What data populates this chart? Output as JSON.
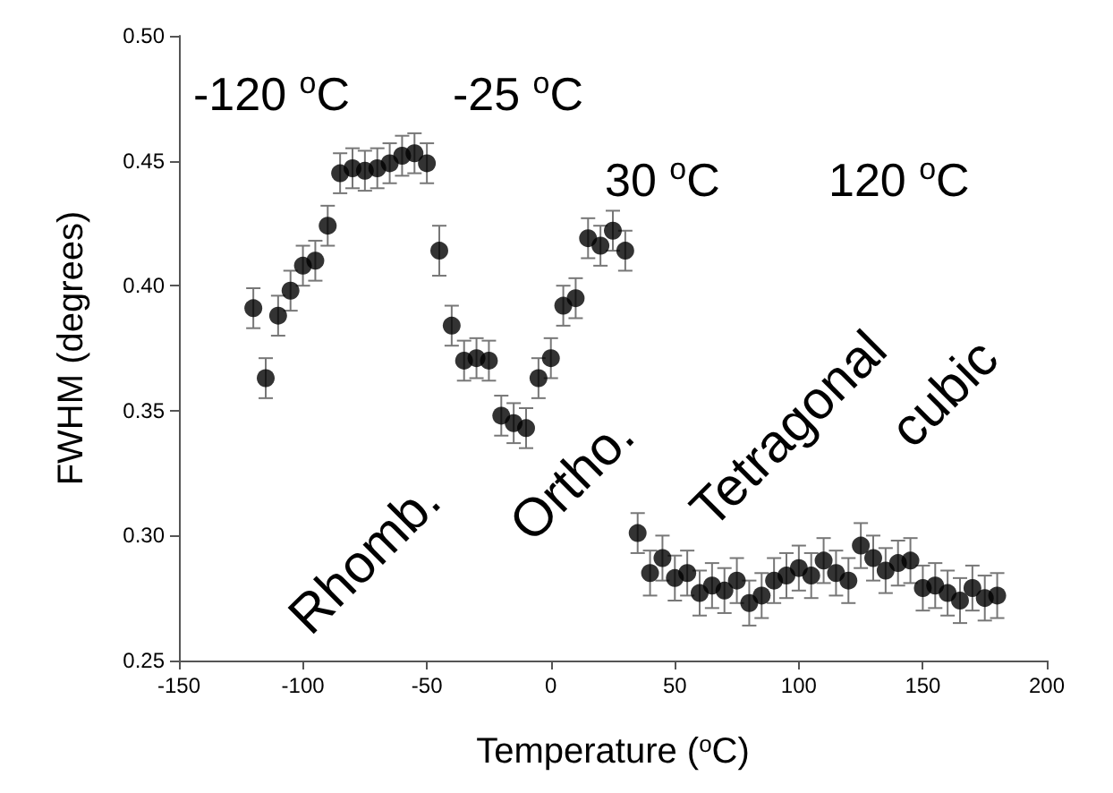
{
  "chart_data": {
    "type": "scatter",
    "xlabel": "Temperature ($^{o}$C)",
    "ylabel": "FWHM (degrees)",
    "x": [
      -120,
      -115,
      -110,
      -105,
      -100,
      -95,
      -90,
      -85,
      -80,
      -75,
      -70,
      -65,
      -60,
      -55,
      -50,
      -45,
      -40,
      -35,
      -30,
      -25,
      -20,
      -15,
      -10,
      -5,
      0,
      5,
      10,
      15,
      20,
      25,
      30,
      35,
      40,
      45,
      50,
      55,
      60,
      65,
      70,
      75,
      80,
      85,
      90,
      95,
      100,
      105,
      110,
      115,
      120,
      125,
      130,
      135,
      140,
      145,
      150,
      155,
      160,
      165,
      170,
      175,
      180
    ],
    "series": [
      {
        "color": "#000000",
        "values": [
          0.391,
          0.363,
          0.388,
          0.398,
          0.408,
          0.41,
          0.424,
          0.445,
          0.447,
          0.446,
          0.447,
          0.449,
          0.452,
          0.453,
          0.449,
          0.414,
          0.384,
          0.37,
          0.371,
          0.37,
          0.348,
          0.345,
          0.343,
          0.363,
          0.371,
          0.392,
          0.395,
          0.419,
          0.416,
          0.422,
          0.414,
          0.301,
          0.285,
          0.291,
          0.283,
          0.285,
          0.277,
          0.28,
          0.278,
          0.282,
          0.273,
          0.276,
          0.282,
          0.284,
          0.287,
          0.284,
          0.29,
          0.285,
          0.282,
          0.296,
          0.291,
          0.286,
          0.289,
          0.29,
          0.279,
          0.28,
          0.277,
          0.274,
          0.279,
          0.275,
          0.276
        ],
        "errors": [
          0.008,
          0.008,
          0.008,
          0.008,
          0.008,
          0.008,
          0.008,
          0.008,
          0.008,
          0.008,
          0.008,
          0.008,
          0.008,
          0.008,
          0.008,
          0.01,
          0.008,
          0.008,
          0.008,
          0.008,
          0.008,
          0.008,
          0.008,
          0.008,
          0.008,
          0.008,
          0.008,
          0.008,
          0.008,
          0.008,
          0.008,
          0.008,
          0.009,
          0.009,
          0.009,
          0.009,
          0.009,
          0.009,
          0.009,
          0.009,
          0.009,
          0.009,
          0.009,
          0.009,
          0.009,
          0.009,
          0.009,
          0.009,
          0.009,
          0.009,
          0.009,
          0.009,
          0.009,
          0.009,
          0.009,
          0.009,
          0.009,
          0.009,
          0.009,
          0.009,
          0.009
        ]
      }
    ],
    "xlim": [
      -150,
      200
    ],
    "xticks": [
      -150,
      -100,
      -50,
      0,
      50,
      100,
      150,
      200
    ],
    "ylim": [
      0.25,
      0.5
    ],
    "yticks": [
      {
        "value": 0.25,
        "label": "0.25"
      },
      {
        "value": 0.3,
        "label": "0.30"
      },
      {
        "value": 0.35,
        "label": "0.35"
      },
      {
        "value": 0.4,
        "label": "0.40"
      },
      {
        "value": 0.45,
        "label": "0.45"
      },
      {
        "value": 0.5,
        "label": "0.50"
      }
    ],
    "marker": "circle",
    "grid": false,
    "annotations": [
      "-120 $^{o}$C",
      "-25 $^{o}$C",
      "30 $^{o}$C",
      "120 $^{o}$C",
      "Rhomb.",
      "Ortho.",
      "Tetragonal",
      "cubic"
    ]
  }
}
